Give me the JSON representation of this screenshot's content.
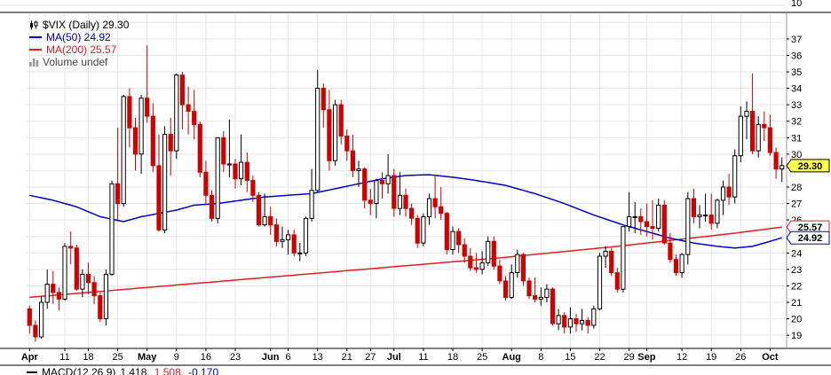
{
  "panel_top": {
    "axis_label": "10"
  },
  "legend": {
    "title": "$VIX (Daily) 29.30",
    "ma50": "MA(50) 24.92",
    "ma200": "MA(200) 25.57",
    "volume": "Volume undef"
  },
  "price_labels": {
    "last": "29.30",
    "ma200": "25.57",
    "ma50": "24.92"
  },
  "panel_bottom": {
    "macd_label": "MACD(12,26,9)",
    "macd_value": "1.418,",
    "signal_value": "1.508,",
    "hist_value": "-0.170"
  },
  "chart_data": {
    "type": "candlestick",
    "symbol": "$VIX",
    "timeframe": "Daily",
    "title": "$VIX (Daily) 29.30",
    "last_price": 29.3,
    "ma50_value": 24.92,
    "ma200_value": 25.57,
    "colors": {
      "up": "#000000",
      "down": "#cc0000",
      "ma50": "#0000cc",
      "ma200": "#e02020",
      "last_box": "#ffff4d",
      "grid": "#e6e6e6"
    },
    "y_axis": {
      "min": 18.2,
      "max": 38.5,
      "labels": [
        37,
        36,
        35,
        34,
        33,
        32,
        31,
        30,
        28,
        27,
        26,
        24,
        23,
        22,
        21,
        20,
        19
      ]
    },
    "x_ticks": [
      {
        "index": 0,
        "label": "Apr",
        "bold": true
      },
      {
        "index": 6,
        "label": "11"
      },
      {
        "index": 10,
        "label": "18"
      },
      {
        "index": 15,
        "label": "25"
      },
      {
        "index": 20,
        "label": "May",
        "bold": true
      },
      {
        "index": 25,
        "label": "9"
      },
      {
        "index": 30,
        "label": "16"
      },
      {
        "index": 35,
        "label": "23"
      },
      {
        "index": 41,
        "label": "Jun",
        "bold": true
      },
      {
        "index": 44,
        "label": "6"
      },
      {
        "index": 49,
        "label": "13"
      },
      {
        "index": 54,
        "label": "21"
      },
      {
        "index": 58,
        "label": "27"
      },
      {
        "index": 62,
        "label": "Jul",
        "bold": true
      },
      {
        "index": 67,
        "label": "11"
      },
      {
        "index": 72,
        "label": "18"
      },
      {
        "index": 77,
        "label": "25"
      },
      {
        "index": 82,
        "label": "Aug",
        "bold": true
      },
      {
        "index": 87,
        "label": "8"
      },
      {
        "index": 92,
        "label": "15"
      },
      {
        "index": 97,
        "label": "22"
      },
      {
        "index": 102,
        "label": "29"
      },
      {
        "index": 105,
        "label": "Sep",
        "bold": true
      },
      {
        "index": 111,
        "label": "12"
      },
      {
        "index": 116,
        "label": "19"
      },
      {
        "index": 121,
        "label": "26"
      },
      {
        "index": 126,
        "label": "Oct",
        "bold": true
      }
    ],
    "candles": [
      [
        20.6,
        20.8,
        19.1,
        19.6
      ],
      [
        19.6,
        19.9,
        18.6,
        18.9
      ],
      [
        18.9,
        21.4,
        18.8,
        21.0
      ],
      [
        21.0,
        23.0,
        20.6,
        22.1
      ],
      [
        22.1,
        22.9,
        20.9,
        21.6
      ],
      [
        21.6,
        21.9,
        20.5,
        21.2
      ],
      [
        21.2,
        24.6,
        21.1,
        24.4
      ],
      [
        24.4,
        25.3,
        23.3,
        24.3
      ],
      [
        24.3,
        24.5,
        21.7,
        21.8
      ],
      [
        21.8,
        23.0,
        21.3,
        22.7
      ],
      [
        22.7,
        23.4,
        21.5,
        22.2
      ],
      [
        22.2,
        22.6,
        20.9,
        21.4
      ],
      [
        21.4,
        21.6,
        19.8,
        20.0
      ],
      [
        20.0,
        23.0,
        19.6,
        22.7
      ],
      [
        22.7,
        28.4,
        22.6,
        28.2
      ],
      [
        28.2,
        31.6,
        26.0,
        27.0
      ],
      [
        27.0,
        33.6,
        26.8,
        33.5
      ],
      [
        33.5,
        34.0,
        30.4,
        31.6
      ],
      [
        31.6,
        32.2,
        29.0,
        30.0
      ],
      [
        30.0,
        33.6,
        28.8,
        33.4
      ],
      [
        33.4,
        36.6,
        31.9,
        32.3
      ],
      [
        32.3,
        33.1,
        28.9,
        29.3
      ],
      [
        29.3,
        31.2,
        25.3,
        25.4
      ],
      [
        25.4,
        31.7,
        25.2,
        31.2
      ],
      [
        31.2,
        32.2,
        28.7,
        30.2
      ],
      [
        30.2,
        34.9,
        29.7,
        34.8
      ],
      [
        34.8,
        35.0,
        31.5,
        33.0
      ],
      [
        33.0,
        34.1,
        31.2,
        32.6
      ],
      [
        32.6,
        33.9,
        30.9,
        31.8
      ],
      [
        31.8,
        32.0,
        28.6,
        28.9
      ],
      [
        28.9,
        29.6,
        27.0,
        27.5
      ],
      [
        27.5,
        27.8,
        25.9,
        26.1
      ],
      [
        26.1,
        31.0,
        25.8,
        31.0
      ],
      [
        31.0,
        31.4,
        28.9,
        29.4
      ],
      [
        29.4,
        32.1,
        28.6,
        29.4
      ],
      [
        29.4,
        29.7,
        27.9,
        28.5
      ],
      [
        28.5,
        31.2,
        28.1,
        29.5
      ],
      [
        29.5,
        30.1,
        27.7,
        28.4
      ],
      [
        28.4,
        28.7,
        27.1,
        27.5
      ],
      [
        27.5,
        27.7,
        25.6,
        25.7
      ],
      [
        25.7,
        27.6,
        25.6,
        26.2
      ],
      [
        26.2,
        26.8,
        25.1,
        25.7
      ],
      [
        25.7,
        26.1,
        24.4,
        24.7
      ],
      [
        24.7,
        25.6,
        24.3,
        24.8
      ],
      [
        24.8,
        25.4,
        23.9,
        25.1
      ],
      [
        25.1,
        25.4,
        23.8,
        24.0
      ],
      [
        24.0,
        24.6,
        23.5,
        24.0
      ],
      [
        24.0,
        26.2,
        23.8,
        26.1
      ],
      [
        26.1,
        29.1,
        25.9,
        27.8
      ],
      [
        27.8,
        35.1,
        27.7,
        34.0
      ],
      [
        34.0,
        34.3,
        31.6,
        32.7
      ],
      [
        32.7,
        33.9,
        29.0,
        29.6
      ],
      [
        29.6,
        33.3,
        29.3,
        33.0
      ],
      [
        33.0,
        33.3,
        30.6,
        31.1
      ],
      [
        31.1,
        31.5,
        29.6,
        30.2
      ],
      [
        30.2,
        31.2,
        28.6,
        29.0
      ],
      [
        29.0,
        29.6,
        28.0,
        29.1
      ],
      [
        29.1,
        29.2,
        26.7,
        27.2
      ],
      [
        27.2,
        27.9,
        26.3,
        27.0
      ],
      [
        27.0,
        28.5,
        26.1,
        28.4
      ],
      [
        28.4,
        28.9,
        27.3,
        28.2
      ],
      [
        28.2,
        30.0,
        27.6,
        28.7
      ],
      [
        28.7,
        29.1,
        26.2,
        26.7
      ],
      [
        26.7,
        28.9,
        26.3,
        27.5
      ],
      [
        27.5,
        27.9,
        26.2,
        26.7
      ],
      [
        26.7,
        27.0,
        25.7,
        26.1
      ],
      [
        26.1,
        26.3,
        24.3,
        24.6
      ],
      [
        24.6,
        26.4,
        24.4,
        26.2
      ],
      [
        26.2,
        27.6,
        25.7,
        27.3
      ],
      [
        27.3,
        28.7,
        26.1,
        26.8
      ],
      [
        26.8,
        28.0,
        26.0,
        26.4
      ],
      [
        26.4,
        26.5,
        23.9,
        24.2
      ],
      [
        24.2,
        25.6,
        23.9,
        25.3
      ],
      [
        25.3,
        25.5,
        24.0,
        24.5
      ],
      [
        24.5,
        24.9,
        23.4,
        23.8
      ],
      [
        23.8,
        24.3,
        22.9,
        23.1
      ],
      [
        23.1,
        24.0,
        22.8,
        23.0
      ],
      [
        23.0,
        24.1,
        22.7,
        23.4
      ],
      [
        23.4,
        25.0,
        23.2,
        24.7
      ],
      [
        24.7,
        25.0,
        23.0,
        23.2
      ],
      [
        23.2,
        23.6,
        22.1,
        22.3
      ],
      [
        22.3,
        22.6,
        21.1,
        21.3
      ],
      [
        21.3,
        23.3,
        21.2,
        22.8
      ],
      [
        22.8,
        24.2,
        22.5,
        23.9
      ],
      [
        23.9,
        24.0,
        22.0,
        22.3
      ],
      [
        22.3,
        22.5,
        21.2,
        21.4
      ],
      [
        21.4,
        22.5,
        21.0,
        21.2
      ],
      [
        21.2,
        21.9,
        20.8,
        21.3
      ],
      [
        21.3,
        22.1,
        21.0,
        21.8
      ],
      [
        21.8,
        21.9,
        19.6,
        19.7
      ],
      [
        19.7,
        20.6,
        19.3,
        20.2
      ],
      [
        20.2,
        20.4,
        19.1,
        19.5
      ],
      [
        19.5,
        20.7,
        19.1,
        20.0
      ],
      [
        20.0,
        20.3,
        19.2,
        19.7
      ],
      [
        19.7,
        20.6,
        19.3,
        19.9
      ],
      [
        19.9,
        20.1,
        19.1,
        19.6
      ],
      [
        19.6,
        20.8,
        19.4,
        20.6
      ],
      [
        20.6,
        24.0,
        20.5,
        23.8
      ],
      [
        23.8,
        24.4,
        23.1,
        24.1
      ],
      [
        24.1,
        24.3,
        22.6,
        22.8
      ],
      [
        22.8,
        23.1,
        21.6,
        21.8
      ],
      [
        21.8,
        25.6,
        21.6,
        25.6
      ],
      [
        25.6,
        27.7,
        25.3,
        26.2
      ],
      [
        26.2,
        27.1,
        25.2,
        26.2
      ],
      [
        26.2,
        26.7,
        25.1,
        25.9
      ],
      [
        25.9,
        27.0,
        25.0,
        25.6
      ],
      [
        25.6,
        27.2,
        24.8,
        25.5
      ],
      [
        25.5,
        27.3,
        25.3,
        26.9
      ],
      [
        26.9,
        27.2,
        24.5,
        24.6
      ],
      [
        24.6,
        25.2,
        23.4,
        23.6
      ],
      [
        23.6,
        23.9,
        22.6,
        22.8
      ],
      [
        22.8,
        24.0,
        22.5,
        23.9
      ],
      [
        23.9,
        27.7,
        23.3,
        27.3
      ],
      [
        27.3,
        27.9,
        25.8,
        26.2
      ],
      [
        26.2,
        26.9,
        25.5,
        26.3
      ],
      [
        26.3,
        27.6,
        25.9,
        26.3
      ],
      [
        26.3,
        27.6,
        25.4,
        25.8
      ],
      [
        25.8,
        27.3,
        25.5,
        27.2
      ],
      [
        27.2,
        28.4,
        26.3,
        28.0
      ],
      [
        28.0,
        28.8,
        26.9,
        27.4
      ],
      [
        27.4,
        30.3,
        27.0,
        29.9
      ],
      [
        29.9,
        32.9,
        29.5,
        32.3
      ],
      [
        32.3,
        33.2,
        30.9,
        32.6
      ],
      [
        32.6,
        34.9,
        30.0,
        30.2
      ],
      [
        30.2,
        32.3,
        29.8,
        31.8
      ],
      [
        31.8,
        32.6,
        30.8,
        31.6
      ],
      [
        31.6,
        32.4,
        29.9,
        30.1
      ],
      [
        30.1,
        30.4,
        28.5,
        29.1
      ],
      [
        29.1,
        29.8,
        28.3,
        29.3
      ]
    ],
    "ma50_points": [
      [
        0,
        27.5
      ],
      [
        4,
        27.2
      ],
      [
        8,
        26.8
      ],
      [
        12,
        26.2
      ],
      [
        16,
        25.9
      ],
      [
        19,
        26.2
      ],
      [
        22,
        26.4
      ],
      [
        25,
        26.6
      ],
      [
        28,
        26.9
      ],
      [
        32,
        27.0
      ],
      [
        36,
        27.2
      ],
      [
        40,
        27.4
      ],
      [
        44,
        27.5
      ],
      [
        48,
        27.6
      ],
      [
        52,
        27.9
      ],
      [
        56,
        28.2
      ],
      [
        60,
        28.5
      ],
      [
        64,
        28.7
      ],
      [
        68,
        28.75
      ],
      [
        72,
        28.6
      ],
      [
        76,
        28.4
      ],
      [
        81,
        28.1
      ],
      [
        86,
        27.6
      ],
      [
        91,
        27.0
      ],
      [
        96,
        26.3
      ],
      [
        101,
        25.7
      ],
      [
        105,
        25.3
      ],
      [
        109,
        24.9
      ],
      [
        113,
        24.6
      ],
      [
        117,
        24.4
      ],
      [
        120,
        24.3
      ],
      [
        123,
        24.4
      ],
      [
        125,
        24.6
      ],
      [
        128,
        24.92
      ]
    ],
    "ma200_points": [
      [
        0,
        21.3
      ],
      [
        20,
        21.9
      ],
      [
        40,
        22.5
      ],
      [
        60,
        23.1
      ],
      [
        80,
        23.7
      ],
      [
        100,
        24.4
      ],
      [
        110,
        24.8
      ],
      [
        120,
        25.2
      ],
      [
        128,
        25.57
      ]
    ]
  }
}
